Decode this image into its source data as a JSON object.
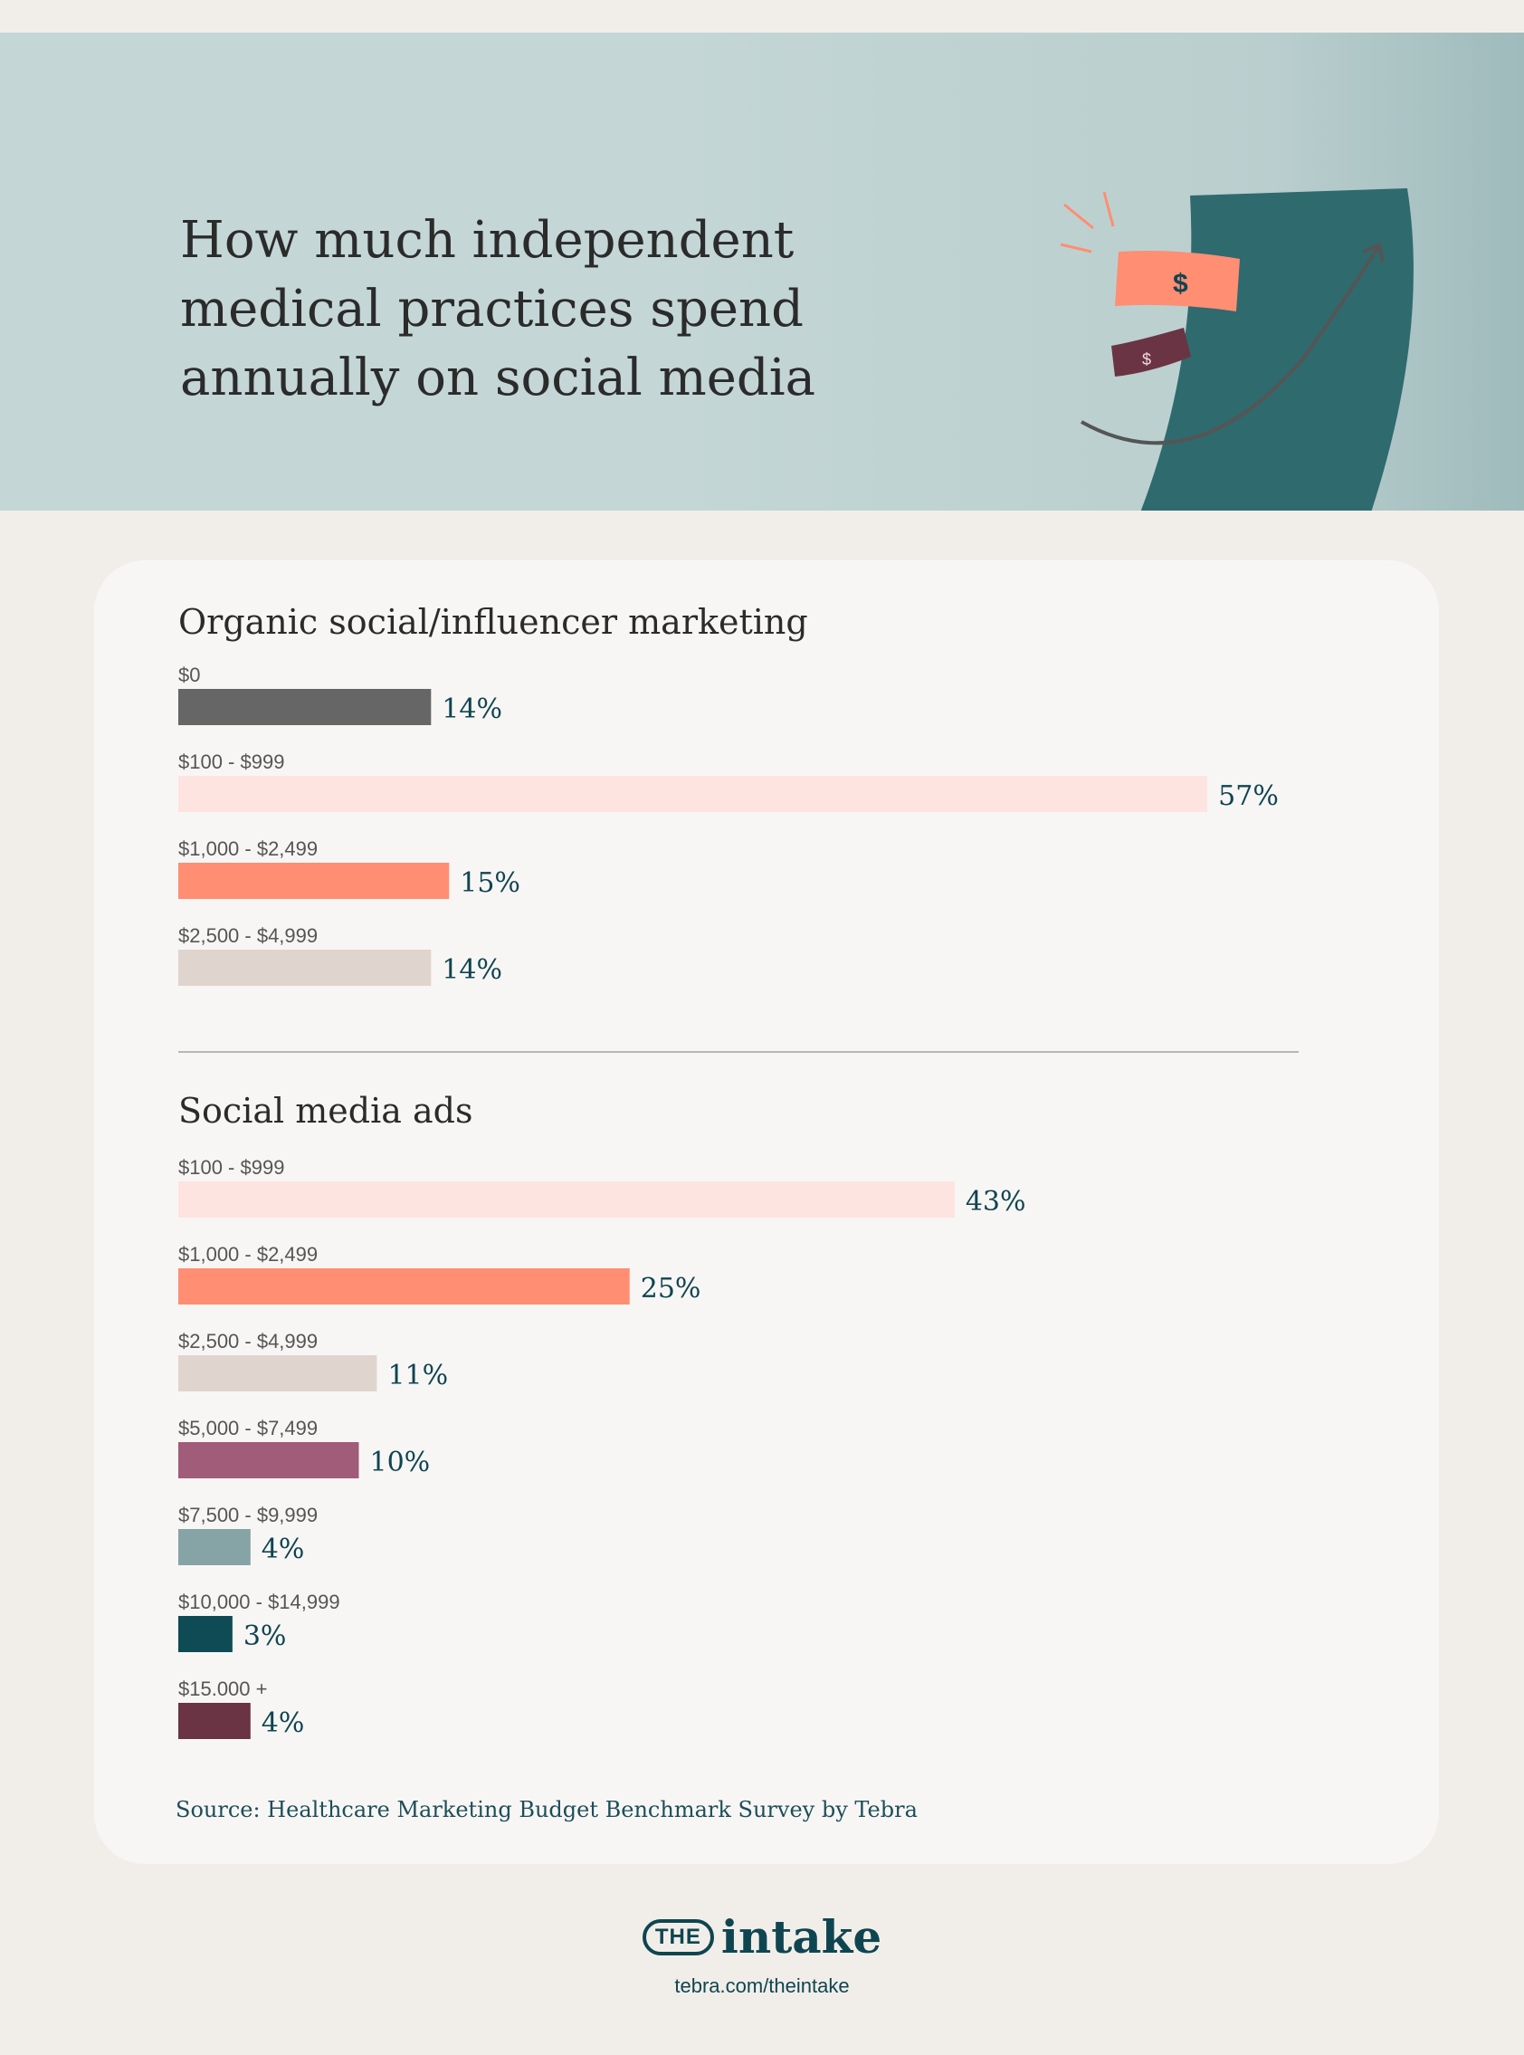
{
  "hero": {
    "title": "How much independent medical practices spend annually on social media"
  },
  "colors": {
    "dark_gray": "#666666",
    "light_pink": "#fde4e0",
    "coral": "#ff8e72",
    "beige": "#e0d5ce",
    "mauve": "#a05c78",
    "sage": "#86a3a5",
    "dark_teal": "#0e4b55",
    "burgundy": "#6a3445"
  },
  "chart_data": [
    {
      "type": "bar",
      "orientation": "horizontal",
      "title": "Organic social/influencer marketing",
      "categories": [
        "$0",
        "$100 - $999",
        "$1,000 - $2,499",
        "$2,500 - $4,999"
      ],
      "values": [
        14,
        57,
        15,
        14
      ],
      "value_labels": [
        "14%",
        "57%",
        "15%",
        "14%"
      ],
      "colors": [
        "#666666",
        "#fde4e0",
        "#ff8e72",
        "#e0d5ce"
      ],
      "unit": "%"
    },
    {
      "type": "bar",
      "orientation": "horizontal",
      "title": "Social media ads",
      "categories": [
        "$100 - $999",
        "$1,000 - $2,499",
        "$2,500 - $4,999",
        "$5,000 - $7,499",
        "$7,500 - $9,999",
        "$10,000 - $14,999",
        "$15.000 +"
      ],
      "values": [
        43,
        25,
        11,
        10,
        4,
        3,
        4
      ],
      "value_labels": [
        "43%",
        "25%",
        "11%",
        "10%",
        "4%",
        "3%",
        "4%"
      ],
      "colors": [
        "#fde4e0",
        "#ff8e72",
        "#e0d5ce",
        "#a05c78",
        "#86a3a5",
        "#0e4b55",
        "#6a3445"
      ],
      "unit": "%"
    }
  ],
  "source": "Source: Healthcare Marketing Budget Benchmark Survey by Tebra",
  "logo": {
    "the": "THE",
    "word": "intake",
    "url": "tebra.com/theintake"
  }
}
